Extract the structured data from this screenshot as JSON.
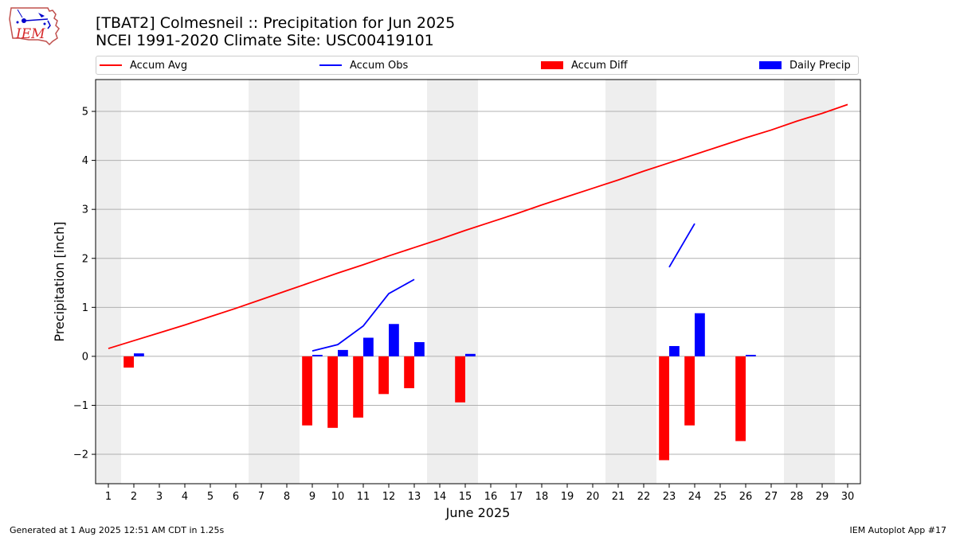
{
  "title_line1": "[TBAT2] Colmesneil :: Precipitation for Jun 2025",
  "title_line2": "NCEI 1991-2020 Climate Site: USC00419101",
  "logo_text": "IEM",
  "footer_left": "Generated at 1 Aug 2025 12:51 AM CDT in 1.25s",
  "footer_right": "IEM Autoplot App #17",
  "colors": {
    "accum_avg": "#ff0000",
    "accum_obs": "#0000ff",
    "accum_diff": "#ff0000",
    "daily_precip": "#0000ff",
    "weekend_shade": "#eeeeee",
    "grid": "#b0b0b0"
  },
  "chart_data": {
    "type": "bar",
    "xlabel": "June 2025",
    "ylabel": "Precipitation [inch]",
    "xlim": [
      0.5,
      30.5
    ],
    "ylim": [
      -2.6,
      5.65
    ],
    "yticks": [
      -2,
      -1,
      0,
      1,
      2,
      3,
      4,
      5
    ],
    "ytick_labels": [
      "−2",
      "−1",
      "0",
      "1",
      "2",
      "3",
      "4",
      "5"
    ],
    "xticks": [
      1,
      2,
      3,
      4,
      5,
      6,
      7,
      8,
      9,
      10,
      11,
      12,
      13,
      14,
      15,
      16,
      17,
      18,
      19,
      20,
      21,
      22,
      23,
      24,
      25,
      26,
      27,
      28,
      29,
      30
    ],
    "grid": "horizontal",
    "legend_placement": "top",
    "weekend_spans": [
      [
        0.5,
        1.5
      ],
      [
        6.5,
        8.5
      ],
      [
        13.5,
        15.5
      ],
      [
        20.5,
        22.5
      ],
      [
        27.5,
        29.5
      ]
    ],
    "series": [
      {
        "name": "Accum Avg",
        "kind": "line",
        "x": [
          1,
          2,
          3,
          4,
          5,
          6,
          7,
          8,
          9,
          10,
          11,
          12,
          13,
          14,
          15,
          16,
          17,
          18,
          19,
          20,
          21,
          22,
          23,
          24,
          25,
          26,
          27,
          28,
          29,
          30
        ],
        "values": [
          0.16,
          0.32,
          0.48,
          0.64,
          0.81,
          0.98,
          1.16,
          1.34,
          1.52,
          1.7,
          1.87,
          2.05,
          2.22,
          2.39,
          2.57,
          2.74,
          2.91,
          3.09,
          3.26,
          3.43,
          3.6,
          3.78,
          3.95,
          4.12,
          4.29,
          4.46,
          4.62,
          4.8,
          4.96,
          5.14
        ]
      },
      {
        "name": "Accum Obs",
        "kind": "line",
        "segments": [
          {
            "x": [
              9,
              10,
              11,
              12,
              13
            ],
            "values": [
              0.11,
              0.24,
              0.62,
              1.28,
              1.57
            ]
          },
          {
            "x": [
              23,
              24
            ],
            "values": [
              1.82,
              2.71
            ]
          }
        ]
      },
      {
        "name": "Accum Diff",
        "kind": "bar",
        "x": [
          2,
          9,
          10,
          11,
          12,
          13,
          15,
          23,
          24,
          26
        ],
        "values": [
          -0.23,
          -1.41,
          -1.46,
          -1.25,
          -0.77,
          -0.65,
          -0.94,
          -2.12,
          -1.41,
          -1.73
        ]
      },
      {
        "name": "Daily Precip",
        "kind": "bar",
        "x": [
          2,
          9,
          10,
          11,
          12,
          13,
          15,
          23,
          24,
          26
        ],
        "values": [
          0.06,
          0.03,
          0.13,
          0.38,
          0.66,
          0.29,
          0.05,
          0.21,
          0.88,
          0.03
        ]
      }
    ]
  }
}
